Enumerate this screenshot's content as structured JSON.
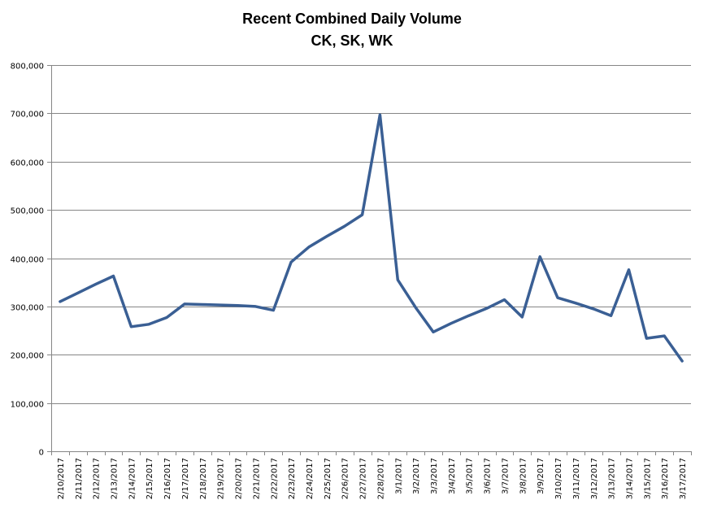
{
  "chart_data": {
    "type": "line",
    "title": "Recent Combined Daily Volume",
    "subtitle": "CK, SK, WK",
    "xlabel": "",
    "ylabel": "",
    "ylim": [
      0,
      800000
    ],
    "grid": true,
    "legend": null,
    "yticks": [
      "0",
      "100,000",
      "200,000",
      "300,000",
      "400,000",
      "500,000",
      "600,000",
      "700,000",
      "800,000"
    ],
    "categories": [
      "2/10/2017",
      "2/11/2017",
      "2/12/2017",
      "2/13/2017",
      "2/14/2017",
      "2/15/2017",
      "2/16/2017",
      "2/17/2017",
      "2/18/2017",
      "2/19/2017",
      "2/20/2017",
      "2/21/2017",
      "2/22/2017",
      "2/23/2017",
      "2/24/2017",
      "2/25/2017",
      "2/26/2017",
      "2/27/2017",
      "2/28/2017",
      "3/1/2017",
      "3/2/2017",
      "3/3/2017",
      "3/4/2017",
      "3/5/2017",
      "3/6/2017",
      "3/7/2017",
      "3/8/2017",
      "3/9/2017",
      "3/10/2017",
      "3/11/2017",
      "3/12/2017",
      "3/13/2017",
      "3/14/2017",
      "3/15/2017",
      "3/16/2017",
      "3/17/2017"
    ],
    "series": [
      {
        "name": "Combined Daily Volume",
        "color": "#3a5f94",
        "values": [
          310000,
          328000,
          346000,
          363000,
          258000,
          263000,
          277000,
          305000,
          304000,
          303000,
          302000,
          300000,
          292000,
          392000,
          423000,
          445000,
          466000,
          490000,
          697000,
          355000,
          298000,
          247000,
          265000,
          281000,
          296000,
          314000,
          278000,
          403000,
          318000,
          307000,
          295000,
          281000,
          376000,
          234000,
          239000,
          187000
        ]
      }
    ]
  },
  "colors": {
    "line": "#3a5f94",
    "grid": "#868686",
    "axis": "#868686"
  }
}
